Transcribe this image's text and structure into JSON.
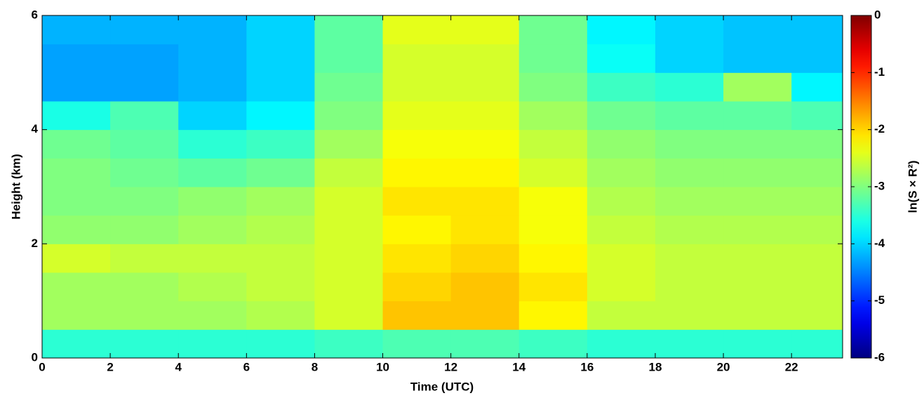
{
  "chart_data": {
    "type": "heatmap",
    "x_label": "Time (UTC)",
    "y_label": "Height (km)",
    "colorbar_label": "ln(S × R²)",
    "colormap": "jet",
    "xlim": [
      0,
      23.5
    ],
    "xticks": [
      0,
      2,
      4,
      6,
      8,
      10,
      12,
      14,
      16,
      18,
      20,
      22
    ],
    "ylim": [
      0,
      6
    ],
    "yticks": [
      0,
      2,
      4,
      6
    ],
    "zlim": [
      -6,
      0
    ],
    "zticks": [
      0,
      -1,
      -2,
      -3,
      -4,
      -5,
      -6
    ],
    "x_edges": [
      0,
      2,
      4,
      6,
      8,
      10,
      12,
      14,
      16,
      18,
      20,
      22,
      23.5
    ],
    "y_edges": [
      0,
      0.5,
      1,
      1.5,
      2,
      2.5,
      3,
      3.5,
      4,
      4.5,
      5,
      5.5,
      6
    ],
    "z": [
      [
        -3.5,
        -3.5,
        -3.5,
        -3.5,
        -3.4,
        -3.3,
        -3.3,
        -3.4,
        -3.5,
        -3.5,
        -3.5,
        -3.5
      ],
      [
        -2.8,
        -2.8,
        -2.8,
        -2.7,
        -2.5,
        -1.9,
        -1.9,
        -2.2,
        -2.6,
        -2.6,
        -2.6,
        -2.6
      ],
      [
        -2.8,
        -2.8,
        -2.7,
        -2.6,
        -2.5,
        -2.0,
        -1.9,
        -2.1,
        -2.5,
        -2.6,
        -2.6,
        -2.6
      ],
      [
        -2.5,
        -2.6,
        -2.6,
        -2.6,
        -2.5,
        -2.1,
        -2.0,
        -2.2,
        -2.5,
        -2.6,
        -2.6,
        -2.6
      ],
      [
        -2.9,
        -2.9,
        -2.8,
        -2.7,
        -2.5,
        -2.2,
        -2.1,
        -2.3,
        -2.6,
        -2.7,
        -2.7,
        -2.7
      ],
      [
        -3.0,
        -3.0,
        -2.9,
        -2.8,
        -2.5,
        -2.1,
        -2.1,
        -2.3,
        -2.7,
        -2.8,
        -2.8,
        -2.8
      ],
      [
        -3.0,
        -3.1,
        -3.2,
        -3.1,
        -2.6,
        -2.2,
        -2.2,
        -2.5,
        -2.8,
        -2.9,
        -2.9,
        -2.9
      ],
      [
        -3.1,
        -3.2,
        -3.5,
        -3.4,
        -2.8,
        -2.3,
        -2.3,
        -2.6,
        -2.9,
        -3.0,
        -3.0,
        -3.0
      ],
      [
        -3.6,
        -3.3,
        -4.0,
        -3.8,
        -3.0,
        -2.4,
        -2.4,
        -2.8,
        -3.1,
        -3.2,
        -3.2,
        -3.3
      ],
      [
        -4.3,
        -4.3,
        -4.2,
        -4.0,
        -3.1,
        -2.5,
        -2.5,
        -3.0,
        -3.4,
        -3.5,
        -2.8,
        -3.8
      ],
      [
        -4.3,
        -4.3,
        -4.2,
        -4.0,
        -3.2,
        -2.5,
        -2.5,
        -3.1,
        -3.7,
        -4.0,
        -4.1,
        -4.1
      ],
      [
        -4.2,
        -4.2,
        -4.2,
        -4.0,
        -3.2,
        -2.4,
        -2.4,
        -3.1,
        -3.8,
        -4.0,
        -4.1,
        -4.1
      ]
    ]
  }
}
